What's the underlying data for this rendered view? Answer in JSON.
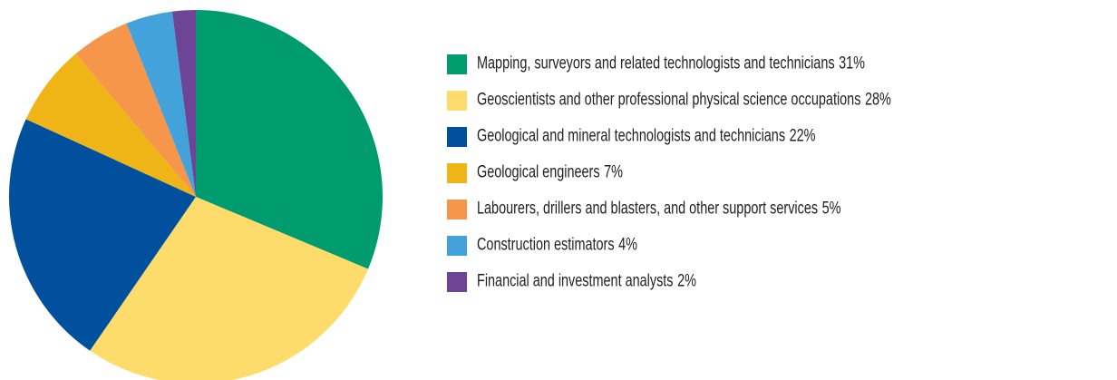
{
  "chart_data": {
    "type": "pie",
    "categories": [
      "Mapping, surveyors and related technologists and technicians",
      "Geoscientists and other professional physical science occupations",
      "Geological and mineral technologists and technicians",
      "Geological engineers",
      "Labourers, drillers and blasters, and other support services",
      "Construction estimators",
      "Financial and investment analysts"
    ],
    "values": [
      31,
      28,
      22,
      7,
      5,
      4,
      2
    ],
    "value_labels": [
      "31%",
      "28%",
      "22%",
      "7%",
      "5%",
      "4%",
      "2%"
    ],
    "colors": [
      "#009b6e",
      "#fddc6c",
      "#00509d",
      "#efb416",
      "#f5964a",
      "#43a2da",
      "#6e4596"
    ],
    "legend": "right"
  }
}
